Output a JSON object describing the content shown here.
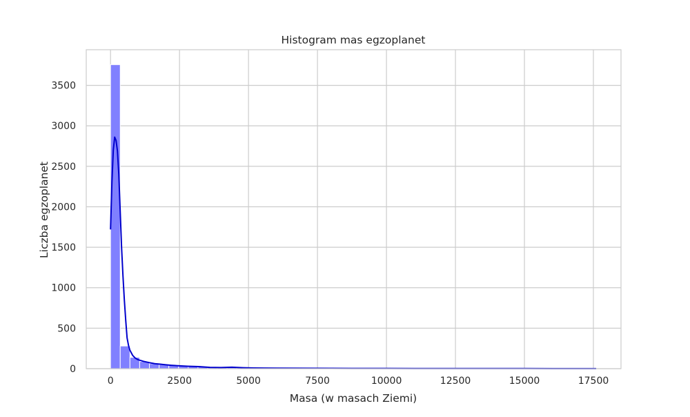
{
  "chart_data": {
    "type": "bar",
    "title": "Histogram mas egzoplanet",
    "xlabel": "Masa (w masach Ziemi)",
    "ylabel": "Liczba egzoplanet",
    "xlim": [
      -880,
      18500
    ],
    "ylim": [
      0,
      3940
    ],
    "xticks": [
      0,
      2500,
      5000,
      7500,
      10000,
      12500,
      15000,
      17500
    ],
    "xtick_labels": [
      "0",
      "2500",
      "5000",
      "7500",
      "10000",
      "12500",
      "15000",
      "17500"
    ],
    "yticks": [
      0,
      500,
      1000,
      1500,
      2000,
      2500,
      3000,
      3500
    ],
    "ytick_labels": [
      "0",
      "500",
      "1000",
      "1500",
      "2000",
      "2500",
      "3000",
      "3500"
    ],
    "grid": true,
    "bin_width": 352,
    "bins": [
      0,
      352,
      704,
      1056,
      1408,
      1760,
      2112,
      2464,
      2816,
      3168,
      3520,
      3872,
      4224,
      4576,
      4928,
      5280,
      5632,
      5984,
      6336,
      6688,
      7040,
      7392,
      7744,
      8096,
      8448,
      8800,
      9152,
      9504,
      9856,
      10208,
      10560,
      10912,
      11264,
      11616,
      11968,
      12320,
      12672,
      13024,
      13376,
      13728,
      14080,
      14432,
      14784,
      15136,
      15488,
      15840,
      16192,
      16544,
      16896,
      17248,
      17600
    ],
    "counts": [
      3755,
      280,
      140,
      88,
      62,
      50,
      42,
      35,
      30,
      26,
      20,
      16,
      14,
      16,
      12,
      10,
      9,
      8,
      7,
      6,
      5,
      5,
      5,
      5,
      4,
      4,
      3,
      3,
      3,
      3,
      2,
      2,
      2,
      2,
      2,
      2,
      2,
      1,
      1,
      1,
      1,
      1,
      1,
      1,
      1,
      1,
      1,
      1,
      1,
      2
    ],
    "kde": {
      "x": [
        0,
        50,
        100,
        150,
        200,
        250,
        300,
        350,
        400,
        450,
        500,
        550,
        600,
        650,
        700,
        800,
        900,
        1000,
        1200,
        1400,
        1600,
        1800,
        2000,
        2200,
        2500,
        2800,
        3200,
        3600,
        4000,
        4400,
        4800,
        5200,
        6000,
        7000,
        8000,
        9000,
        10000,
        11000,
        12000,
        13000,
        14000,
        15000,
        16000,
        17000,
        17600
      ],
      "y": [
        1720,
        2300,
        2700,
        2860,
        2820,
        2690,
        2400,
        1950,
        1500,
        1150,
        850,
        600,
        380,
        290,
        230,
        165,
        130,
        110,
        90,
        75,
        62,
        55,
        48,
        42,
        35,
        30,
        26,
        16,
        14,
        18,
        12,
        8,
        6,
        5,
        4,
        3,
        3,
        2,
        2,
        2,
        2,
        2,
        1,
        1,
        1
      ]
    },
    "colors": {
      "bar_fill": "#8080ff",
      "bar_edge": "#ffffff",
      "kde_line": "#0000cc",
      "grid": "#cccccc",
      "spine": "#cccccc"
    }
  }
}
